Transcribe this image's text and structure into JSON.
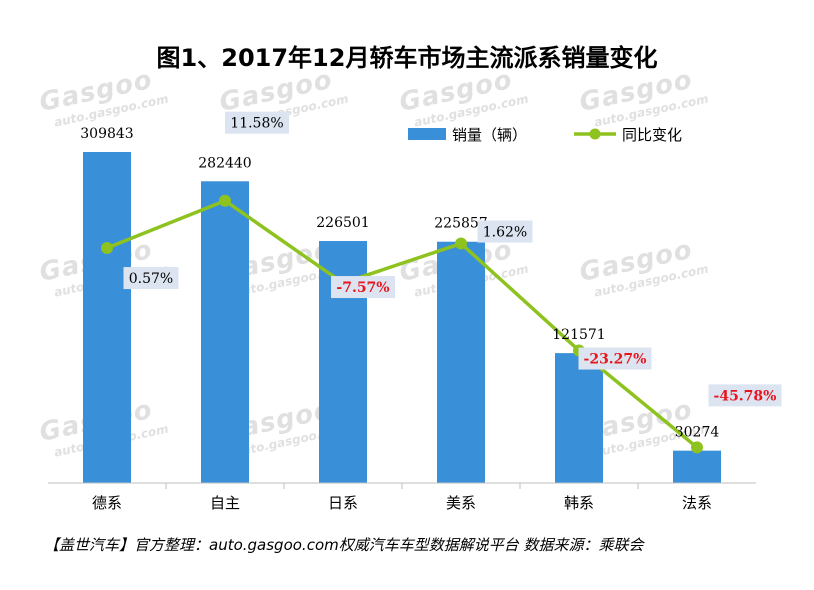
{
  "title": "图1、2017年12月轿车市场主流派系销量变化",
  "footer": "【盖世汽车】官方整理：auto.gasgoo.com权威汽车车型数据解说平台 数据来源：乘联会",
  "watermark": {
    "logo": "Gasgoo",
    "url": "auto.gasgoo.com",
    "brand": "盖世汽车"
  },
  "colors": {
    "bar": "#3a8fd9",
    "line": "#8dc21f",
    "negative": "#e8141e",
    "label_bg": "#dbe4f0"
  },
  "chart_data": {
    "type": "bar+line",
    "categories": [
      "德系",
      "自主",
      "日系",
      "美系",
      "韩系",
      "法系"
    ],
    "series": [
      {
        "name": "销量（辆）",
        "type": "bar",
        "values": [
          309843,
          282440,
          226501,
          225857,
          121571,
          30274
        ]
      },
      {
        "name": "同比变化",
        "type": "line",
        "values": [
          0.57,
          11.58,
          -7.57,
          1.62,
          -23.27,
          -45.78
        ],
        "labels": [
          "0.57%",
          "11.58%",
          "-7.57%",
          "1.62%",
          "-23.27%",
          "-45.78%"
        ]
      }
    ],
    "bar_labels": [
      "309843",
      "282440",
      "226501",
      "225857",
      "121571",
      "30274"
    ],
    "legend_position": "top-right",
    "grid": false
  }
}
